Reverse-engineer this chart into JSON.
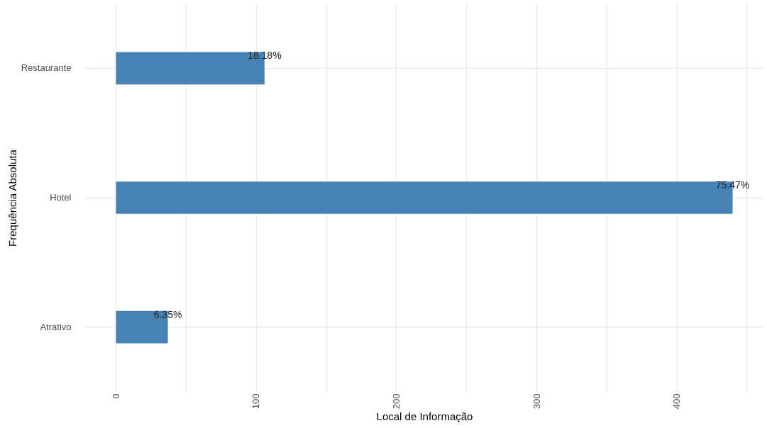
{
  "chart_data": {
    "type": "bar",
    "orientation": "horizontal",
    "categories": [
      "Restaurante",
      "Hotel",
      "Atrativo"
    ],
    "values": [
      106,
      440,
      37
    ],
    "annotations": [
      {
        "text": "18.18%",
        "x": 106,
        "y": "Restaurante"
      },
      {
        "text": "75.47%",
        "x": 440,
        "y": "Hotel"
      },
      {
        "text": "6.35%",
        "x": 37,
        "y": "Atrativo"
      }
    ],
    "color": "#4682b4",
    "xlabel": "Local de Informação",
    "ylabel": "Frequência Absoluta",
    "xlim": [
      -22,
      462
    ],
    "xticks": [
      0,
      {
        "value": 50,
        "label": null
      },
      100,
      {
        "value": 150,
        "label": null
      },
      200,
      {
        "value": 250,
        "label": null
      },
      300,
      {
        "value": 350,
        "label": null
      },
      400,
      {
        "value": 450,
        "label": null
      }
    ],
    "grid": true
  }
}
